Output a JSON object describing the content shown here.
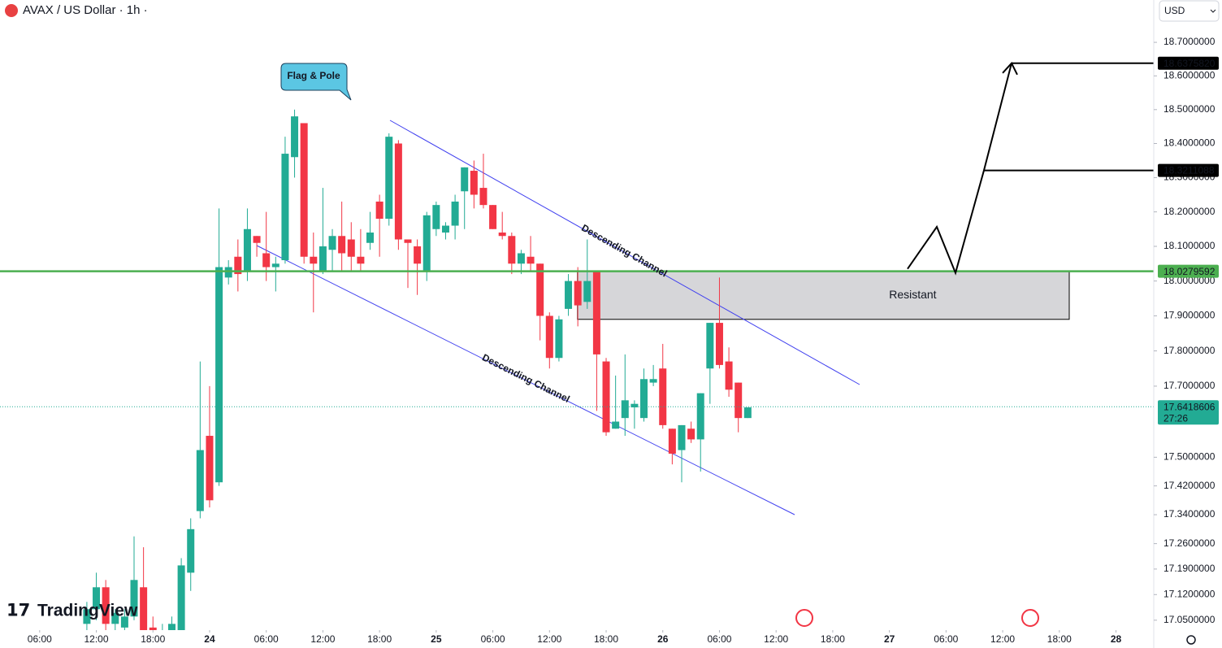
{
  "header": {
    "symbol": "AVAX / US Dollar · 1h ·",
    "currency": "USD",
    "logo": "TradingView"
  },
  "chart_data": {
    "type": "candlestick",
    "up_color": "#22ab94",
    "down_color": "#f23645",
    "log_scale": true,
    "ylim": [
      17.023,
      18.827
    ],
    "yticks": [
      {
        "value": 17.05,
        "label": "17.0500000"
      },
      {
        "value": 17.12,
        "label": "17.1200000"
      },
      {
        "value": 17.19,
        "label": "17.1900000"
      },
      {
        "value": 17.26,
        "label": "17.2600000"
      },
      {
        "value": 17.34,
        "label": "17.3400000"
      },
      {
        "value": 17.42,
        "label": "17.4200000"
      },
      {
        "value": 17.5,
        "label": "17.5000000"
      },
      {
        "value": 17.7,
        "label": "17.7000000"
      },
      {
        "value": 17.8,
        "label": "17.8000000"
      },
      {
        "value": 17.9,
        "label": "17.9000000"
      },
      {
        "value": 18.0,
        "label": "18.0000000"
      },
      {
        "value": 18.1,
        "label": "18.1000000"
      },
      {
        "value": 18.2,
        "label": "18.2000000"
      },
      {
        "value": 18.3,
        "label": "18.3000000"
      },
      {
        "value": 18.4,
        "label": "18.4000000"
      },
      {
        "value": 18.5,
        "label": "18.5000000"
      },
      {
        "value": 18.6,
        "label": "18.6000000"
      },
      {
        "value": 18.7,
        "label": "18.7000000"
      }
    ],
    "xlim": [
      1.8,
      124
    ],
    "xticks": [
      {
        "value": 6,
        "label": "06:00"
      },
      {
        "value": 12,
        "label": "12:00"
      },
      {
        "value": 18,
        "label": "18:00"
      },
      {
        "value": 24,
        "label": "24"
      },
      {
        "value": 30,
        "label": "06:00"
      },
      {
        "value": 36,
        "label": "12:00"
      },
      {
        "value": 42,
        "label": "18:00"
      },
      {
        "value": 48,
        "label": "25"
      },
      {
        "value": 54,
        "label": "06:00"
      },
      {
        "value": 60,
        "label": "12:00"
      },
      {
        "value": 66,
        "label": "18:00"
      },
      {
        "value": 72,
        "label": "26"
      },
      {
        "value": 78,
        "label": "06:00"
      },
      {
        "value": 84,
        "label": "12:00"
      },
      {
        "value": 90,
        "label": "18:00"
      },
      {
        "value": 96,
        "label": "27"
      },
      {
        "value": 102,
        "label": "06:00"
      },
      {
        "value": 108,
        "label": "12:00"
      },
      {
        "value": 114,
        "label": "18:00"
      },
      {
        "value": 120,
        "label": "28"
      }
    ],
    "x": [
      11,
      12,
      13,
      14,
      15,
      16,
      17,
      18,
      19,
      20,
      21,
      22,
      23,
      24,
      25,
      26,
      27,
      28,
      29,
      30,
      31,
      32,
      33,
      34,
      35,
      36,
      37,
      38,
      39,
      40,
      41,
      42,
      43,
      44,
      45,
      46,
      47,
      48,
      49,
      50,
      51,
      52,
      53,
      54,
      55,
      56,
      57,
      58,
      59,
      60,
      61,
      62,
      63,
      64,
      65,
      66,
      67,
      68,
      69,
      70,
      71,
      72,
      73,
      74,
      75,
      76,
      77,
      78,
      79,
      80,
      81
    ],
    "open": [
      17.04,
      17.08,
      17.14,
      17.04,
      17.03,
      17.06,
      17.14,
      17.03,
      17.0,
      17.01,
      17.02,
      17.18,
      17.35,
      17.56,
      17.43,
      18.01,
      18.07,
      18.03,
      18.13,
      18.08,
      18.04,
      18.06,
      18.36,
      18.46,
      18.07,
      18.03,
      18.09,
      18.13,
      18.12,
      18.07,
      18.11,
      18.23,
      18.18,
      18.4,
      18.12,
      18.1,
      18.03,
      18.15,
      18.14,
      18.16,
      18.26,
      18.32,
      18.27,
      18.22,
      18.14,
      18.13,
      18.05,
      18.07,
      18.05,
      17.9,
      17.78,
      17.92,
      18.0,
      17.94,
      18.03,
      17.77,
      17.58,
      17.61,
      17.64,
      17.61,
      17.71,
      17.75,
      17.58,
      17.52,
      17.58,
      17.55,
      17.75,
      17.88,
      17.77,
      17.71,
      17.61
    ],
    "high": [
      17.1,
      17.18,
      17.16,
      17.08,
      17.08,
      17.28,
      17.25,
      17.06,
      17.04,
      17.06,
      17.22,
      17.33,
      17.77,
      17.7,
      18.21,
      18.06,
      18.12,
      18.21,
      18.13,
      18.2,
      18.07,
      18.42,
      18.5,
      18.46,
      18.14,
      18.27,
      18.15,
      18.23,
      18.17,
      18.15,
      18.2,
      18.25,
      18.43,
      18.41,
      18.12,
      18.12,
      18.2,
      18.23,
      18.17,
      18.25,
      18.33,
      18.35,
      18.37,
      18.22,
      18.2,
      18.14,
      18.09,
      18.13,
      18.05,
      17.91,
      17.9,
      18.02,
      18.04,
      18.12,
      18.03,
      17.78,
      17.73,
      17.79,
      17.66,
      17.75,
      17.76,
      17.82,
      17.58,
      17.59,
      17.6,
      17.68,
      17.88,
      18.01,
      17.81,
      17.71,
      17.64
    ],
    "low": [
      17.02,
      17.05,
      17.02,
      17.02,
      17.02,
      17.05,
      17.01,
      16.98,
      16.97,
      16.99,
      17.02,
      17.13,
      17.33,
      17.36,
      17.42,
      17.99,
      17.97,
      18.0,
      18.07,
      18.0,
      17.97,
      18.05,
      18.3,
      18.05,
      17.91,
      18.02,
      18.03,
      18.03,
      18.03,
      18.03,
      18.09,
      18.07,
      18.16,
      18.09,
      17.98,
      17.96,
      18.0,
      18.13,
      18.12,
      18.12,
      18.15,
      18.21,
      18.21,
      18.15,
      18.12,
      18.02,
      18.02,
      18.03,
      17.83,
      17.75,
      17.77,
      17.9,
      17.87,
      17.92,
      17.63,
      17.56,
      17.58,
      17.56,
      17.58,
      17.6,
      17.7,
      17.58,
      17.48,
      17.43,
      17.54,
      17.46,
      17.65,
      17.75,
      17.67,
      17.57,
      17.61
    ],
    "close": [
      17.08,
      17.14,
      17.04,
      17.07,
      17.06,
      17.16,
      17.02,
      17.0,
      17.02,
      17.04,
      17.2,
      17.3,
      17.52,
      17.38,
      18.04,
      18.04,
      18.02,
      18.15,
      18.11,
      18.04,
      18.05,
      18.37,
      18.48,
      18.07,
      18.05,
      18.1,
      18.13,
      18.08,
      18.07,
      18.05,
      18.14,
      18.18,
      18.42,
      18.12,
      18.11,
      18.05,
      18.19,
      18.22,
      18.16,
      18.23,
      18.33,
      18.25,
      18.22,
      18.15,
      18.13,
      18.05,
      18.08,
      18.05,
      17.9,
      17.78,
      17.89,
      18.0,
      17.93,
      18.0,
      17.79,
      17.57,
      17.6,
      17.66,
      17.65,
      17.72,
      17.72,
      17.59,
      17.51,
      17.59,
      17.55,
      17.68,
      17.88,
      17.76,
      17.69,
      17.61,
      17.64
    ],
    "current_price": {
      "value": 17.6418606,
      "label": "17.6418606",
      "countdown": "27:26",
      "color": "#22ab94"
    },
    "price_lines": [
      {
        "value": 18.637582,
        "label": "18.6375820",
        "color": "#000000"
      },
      {
        "value": 18.3211088,
        "label": "18.3211088",
        "color": "#000000"
      },
      {
        "value": 18.0279592,
        "label": "18.0279592",
        "color": "#4caf50"
      }
    ],
    "zone": {
      "label": "Resistant",
      "low": 17.89,
      "high": 18.0279592
    },
    "annotations": [
      "Flag & Pole",
      "Descending Channel",
      "Descending Channel"
    ]
  }
}
